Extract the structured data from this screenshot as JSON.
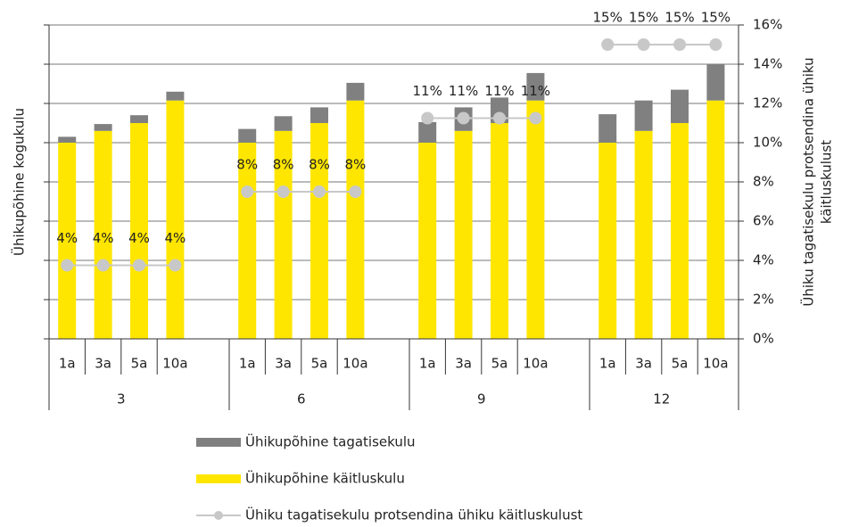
{
  "chart_data": {
    "type": "bar",
    "categories": [
      "1a",
      "3a",
      "5a",
      "10a",
      "1a",
      "3a",
      "5a",
      "10a",
      "1a",
      "3a",
      "5a",
      "10a",
      "1a",
      "3a",
      "5a",
      "10a"
    ],
    "groups": [
      "3",
      "6",
      "9",
      "12"
    ],
    "ylabel": "Ühikupõhine kogukulu",
    "y2label": [
      "Ühiku tagatisekulu protsendina ühiku",
      "käitluskulust"
    ],
    "ylim": [
      0,
      16
    ],
    "y2lim": [
      0,
      16
    ],
    "y2ticks": [
      {
        "value": 0,
        "label": "0%"
      },
      {
        "value": 2,
        "label": "2%"
      },
      {
        "value": 4,
        "label": "4%"
      },
      {
        "value": 6,
        "label": "6%"
      },
      {
        "value": 8,
        "label": "8%"
      },
      {
        "value": 10,
        "label": "10%"
      },
      {
        "value": 12,
        "label": "12%"
      },
      {
        "value": 14,
        "label": "14%"
      },
      {
        "value": 16,
        "label": "16%"
      }
    ],
    "grid": true,
    "stacked": true,
    "series": [
      {
        "name": "Ühikupõhine käitluskulu",
        "color": "#ffe600",
        "values": [
          10.0,
          10.6,
          11.0,
          12.15,
          10.0,
          10.6,
          11.0,
          12.15,
          10.0,
          10.6,
          11.0,
          12.15,
          10.0,
          10.6,
          11.0,
          12.15
        ]
      },
      {
        "name": "Ühikupõhine tagatisekulu",
        "color": "#808080",
        "values": [
          0.3,
          0.35,
          0.4,
          0.45,
          0.7,
          0.75,
          0.8,
          0.9,
          1.05,
          1.2,
          1.3,
          1.4,
          1.45,
          1.55,
          1.7,
          1.85
        ]
      },
      {
        "name": "Ühiku tagatisekulu protsendina ühiku käitluskulust",
        "color": "#c8c8c8",
        "type": "line",
        "axis": "y2",
        "values": [
          3.75,
          3.75,
          3.75,
          3.75,
          7.5,
          7.5,
          7.5,
          7.5,
          11.25,
          11.25,
          11.25,
          11.25,
          15,
          15,
          15,
          15
        ],
        "value_labels": [
          "4%",
          "4%",
          "4%",
          "4%",
          "8%",
          "8%",
          "8%",
          "8%",
          "11%",
          "11%",
          "11%",
          "11%",
          "15%",
          "15%",
          "15%",
          "15%"
        ]
      }
    ],
    "legend_order": [
      1,
      0,
      2
    ]
  }
}
